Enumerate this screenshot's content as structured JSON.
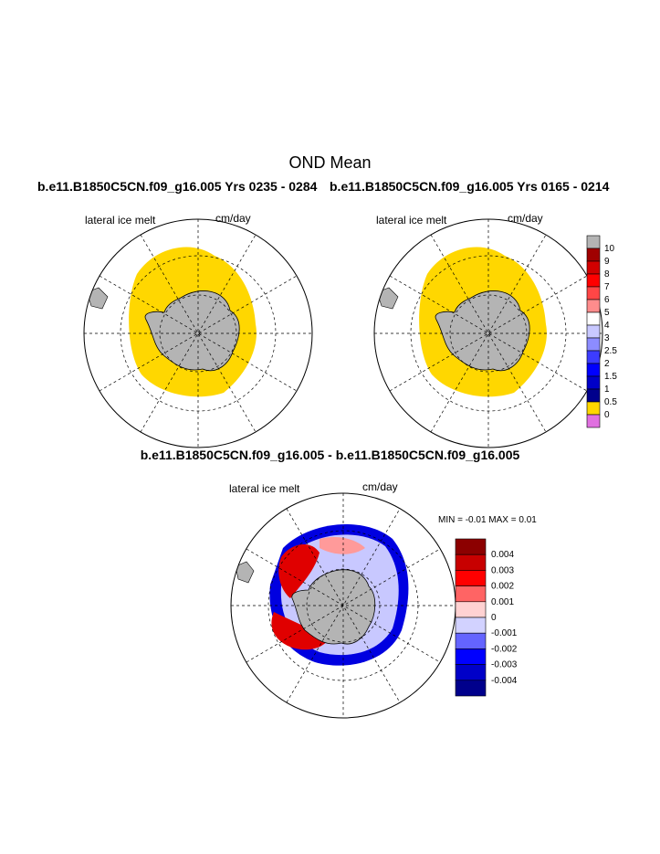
{
  "figure": {
    "title": "OND Mean",
    "top_left": {
      "case": "b.e11.B1850C5CN.f09_g16.005  Yrs 0235 - 0284",
      "field": "lateral ice melt",
      "units": "cm/day"
    },
    "top_right": {
      "case": "b.e11.B1850C5CN.f09_g16.005  Yrs 0165 - 0214",
      "field": "lateral ice melt",
      "units": "cm/day"
    },
    "bottom": {
      "case": "b.e11.B1850C5CN.f09_g16.005 - b.e11.B1850C5CN.f09_g16.005",
      "field": "lateral ice melt",
      "units": "cm/day",
      "stats": "MIN =  -0.01 MAX =   0.01"
    }
  },
  "legend_top": {
    "labels": [
      "10",
      "9",
      "8",
      "7",
      "6",
      "5",
      "4",
      "3",
      "2.5",
      "2",
      "1.5",
      "1",
      "0.5",
      "0"
    ],
    "colors": [
      "#b4b4b4",
      "#a00000",
      "#d20000",
      "#ff0000",
      "#ff4646",
      "#ff8c8c",
      "#ffffff",
      "#c8c8ff",
      "#8c8cff",
      "#3c3cff",
      "#0000ff",
      "#0000c8",
      "#00008c",
      "#ffd700",
      "#e070e0"
    ]
  },
  "legend_diff": {
    "labels": [
      "0.004",
      "0.003",
      "0.002",
      "0.001",
      "0",
      "-0.001",
      "-0.002",
      "-0.003",
      "-0.004"
    ],
    "colors": [
      "#8c0000",
      "#c80000",
      "#ff0000",
      "#ff6464",
      "#ffd2d2",
      "#d2d2ff",
      "#6464ff",
      "#0000ff",
      "#0000c8",
      "#00008c"
    ]
  }
}
